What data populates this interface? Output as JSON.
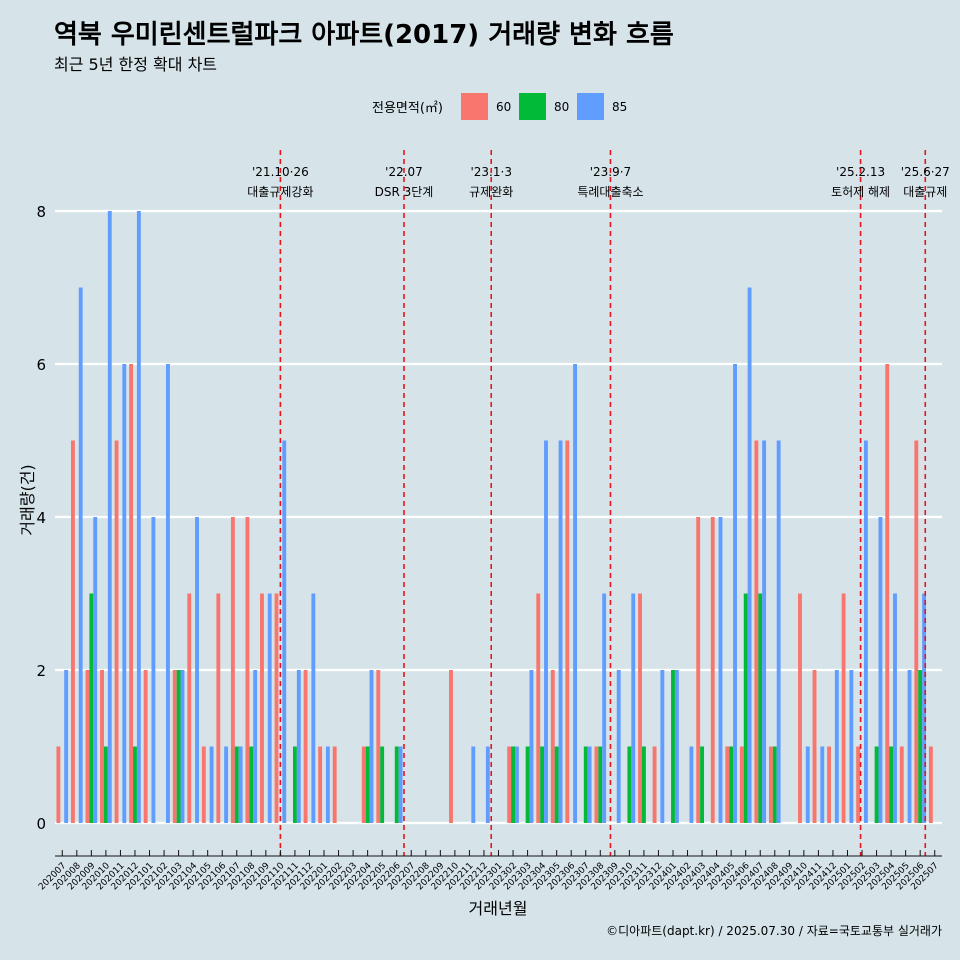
{
  "chart_data": {
    "type": "bar",
    "title": "역북 우미린센트럴파크 아파트(2017) 거래량 변화 흐름",
    "subtitle": "최근 5년 한정 확대 차트",
    "xlabel": "거래년월",
    "ylabel": "거래량(건)",
    "ylim": [
      0,
      8
    ],
    "yticks": [
      0,
      2,
      4,
      6,
      8
    ],
    "legend": {
      "title": "전용면적(㎡)",
      "placement": "top",
      "items": [
        {
          "label": "60",
          "color": "#f8766d"
        },
        {
          "label": "80",
          "color": "#00ba38"
        },
        {
          "label": "85",
          "color": "#619cff"
        }
      ]
    },
    "categories": [
      "202007",
      "202008",
      "202009",
      "202010",
      "202011",
      "202012",
      "202101",
      "202102",
      "202103",
      "202104",
      "202105",
      "202106",
      "202107",
      "202108",
      "202109",
      "202110",
      "202111",
      "202112",
      "202201",
      "202202",
      "202203",
      "202204",
      "202205",
      "202206",
      "202207",
      "202208",
      "202209",
      "202210",
      "202211",
      "202212",
      "202301",
      "202302",
      "202303",
      "202304",
      "202305",
      "202306",
      "202307",
      "202308",
      "202309",
      "202310",
      "202311",
      "202312",
      "202401",
      "202402",
      "202403",
      "202404",
      "202405",
      "202406",
      "202407",
      "202408",
      "202409",
      "202410",
      "202411",
      "202412",
      "202501",
      "202502",
      "202503",
      "202504",
      "202505",
      "202506",
      "202507"
    ],
    "series": [
      {
        "name": "60",
        "color": "#f8766d",
        "values": [
          1,
          5,
          2,
          2,
          5,
          6,
          2,
          0,
          2,
          3,
          1,
          3,
          4,
          4,
          3,
          3,
          0,
          2,
          1,
          1,
          0,
          1,
          2,
          0,
          0,
          0,
          0,
          2,
          0,
          0,
          0,
          1,
          0,
          3,
          2,
          5,
          0,
          1,
          0,
          0,
          3,
          1,
          0,
          0,
          4,
          4,
          1,
          1,
          5,
          1,
          0,
          3,
          2,
          1,
          3,
          1,
          0,
          6,
          1,
          5,
          1
        ]
      },
      {
        "name": "80",
        "color": "#00ba38",
        "values": [
          0,
          0,
          3,
          1,
          0,
          1,
          0,
          0,
          2,
          0,
          0,
          0,
          1,
          1,
          0,
          0,
          1,
          0,
          0,
          0,
          0,
          1,
          1,
          1,
          0,
          0,
          0,
          0,
          0,
          0,
          0,
          1,
          1,
          1,
          1,
          0,
          1,
          1,
          0,
          1,
          1,
          0,
          2,
          0,
          1,
          0,
          1,
          3,
          3,
          1,
          0,
          0,
          0,
          0,
          0,
          0,
          1,
          1,
          0,
          2,
          0
        ]
      },
      {
        "name": "85",
        "color": "#619cff",
        "values": [
          2,
          7,
          4,
          8,
          6,
          8,
          4,
          6,
          2,
          4,
          1,
          1,
          1,
          2,
          3,
          5,
          2,
          3,
          1,
          0,
          0,
          2,
          0,
          1,
          0,
          0,
          0,
          0,
          1,
          1,
          0,
          1,
          2,
          5,
          5,
          6,
          1,
          3,
          2,
          3,
          0,
          2,
          2,
          1,
          0,
          4,
          6,
          7,
          5,
          5,
          0,
          1,
          1,
          2,
          2,
          5,
          4,
          3,
          2,
          3,
          0
        ]
      }
    ],
    "events": [
      {
        "date": "'21.10·26",
        "label": "대출규제강화",
        "after": "202110",
        "frac": 0.5
      },
      {
        "date": "'22.07",
        "label": "DSR 3단계",
        "after": "202207",
        "frac": 0.0
      },
      {
        "date": "'23.1·3",
        "label": "규제완화",
        "after": "202301",
        "frac": 0.0
      },
      {
        "date": "'23.9·7",
        "label": "특례대출축소",
        "after": "202309",
        "frac": 0.2
      },
      {
        "date": "'25.2.13",
        "label": "토허제 해제",
        "after": "202502",
        "frac": 0.4
      },
      {
        "date": "'25.6·27",
        "label": "대출규제",
        "after": "202506",
        "frac": 0.85
      }
    ],
    "grid": true
  },
  "caption": "©디아파트(dapt.kr) / 2025.07.30 / 자료=국토교통부 실거래가"
}
